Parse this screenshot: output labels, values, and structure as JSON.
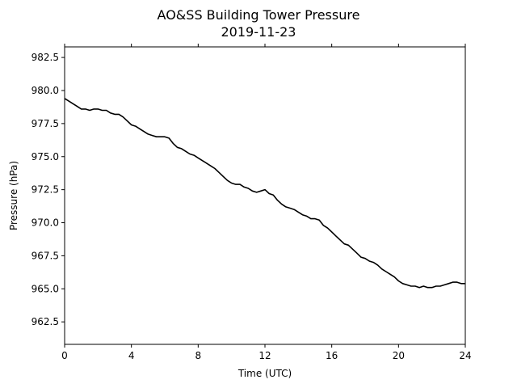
{
  "chart_data": {
    "type": "line",
    "title": "AO&SS Building Tower Pressure",
    "subtitle": "2019-11-23",
    "xlabel": "Time (UTC)",
    "ylabel": "Pressure (hPa)",
    "xlim": [
      0,
      24
    ],
    "ylim": [
      960.8,
      983.3
    ],
    "xticks": [
      0,
      4,
      8,
      12,
      16,
      20,
      24
    ],
    "xtick_labels": [
      "0",
      "4",
      "8",
      "12",
      "16",
      "20",
      "24"
    ],
    "yticks": [
      962.5,
      965.0,
      967.5,
      970.0,
      972.5,
      975.0,
      977.5,
      980.0,
      982.5
    ],
    "ytick_labels": [
      "962.5",
      "965.0",
      "967.5",
      "970.0",
      "972.5",
      "975.0",
      "977.5",
      "980.0",
      "982.5"
    ],
    "grid": false,
    "line_color": "#000000",
    "series": [
      {
        "x": [
          0.0,
          0.25,
          0.5,
          0.75,
          1.0,
          1.25,
          1.5,
          1.75,
          2.0,
          2.25,
          2.5,
          2.75,
          3.0,
          3.25,
          3.5,
          3.75,
          4.0,
          4.25,
          4.5,
          4.75,
          5.0,
          5.25,
          5.5,
          5.75,
          6.0,
          6.25,
          6.5,
          6.75,
          7.0,
          7.25,
          7.5,
          7.75,
          8.0,
          8.25,
          8.5,
          8.75,
          9.0,
          9.25,
          9.5,
          9.75,
          10.0,
          10.25,
          10.5,
          10.75,
          11.0,
          11.25,
          11.5,
          11.75,
          12.0,
          12.25,
          12.5,
          12.75,
          13.0,
          13.25,
          13.5,
          13.75,
          14.0,
          14.25,
          14.5,
          14.75,
          15.0,
          15.25,
          15.5,
          15.75,
          16.0,
          16.25,
          16.5,
          16.75,
          17.0,
          17.25,
          17.5,
          17.75,
          18.0,
          18.25,
          18.5,
          18.75,
          19.0,
          19.25,
          19.5,
          19.75,
          20.0,
          20.25,
          20.5,
          20.75,
          21.0,
          21.25,
          21.5,
          21.75,
          22.0,
          22.25,
          22.5,
          22.75,
          23.0,
          23.25,
          23.5,
          23.75,
          24.0
        ],
        "values": [
          979.4,
          979.2,
          979.0,
          978.8,
          978.6,
          978.6,
          978.5,
          978.6,
          978.6,
          978.5,
          978.5,
          978.3,
          978.2,
          978.2,
          978.0,
          977.7,
          977.4,
          977.3,
          977.1,
          976.9,
          976.7,
          976.6,
          976.5,
          976.5,
          976.5,
          976.4,
          976.0,
          975.7,
          975.6,
          975.4,
          975.2,
          975.1,
          974.9,
          974.7,
          974.5,
          974.3,
          974.1,
          973.8,
          973.5,
          973.2,
          973.0,
          972.9,
          972.9,
          972.7,
          972.6,
          972.4,
          972.3,
          972.4,
          972.5,
          972.2,
          972.1,
          971.7,
          971.4,
          971.2,
          971.1,
          971.0,
          970.8,
          970.6,
          970.5,
          970.3,
          970.3,
          970.2,
          969.8,
          969.6,
          969.3,
          969.0,
          968.7,
          968.4,
          968.3,
          968.0,
          967.7,
          967.4,
          967.3,
          967.1,
          967.0,
          966.8,
          966.5,
          966.3,
          966.1,
          965.9,
          965.6,
          965.4,
          965.3,
          965.2,
          965.2,
          965.1,
          965.2,
          965.1,
          965.1,
          965.2,
          965.2,
          965.3,
          965.4,
          965.5,
          965.5,
          965.4,
          965.4
        ]
      }
    ]
  }
}
